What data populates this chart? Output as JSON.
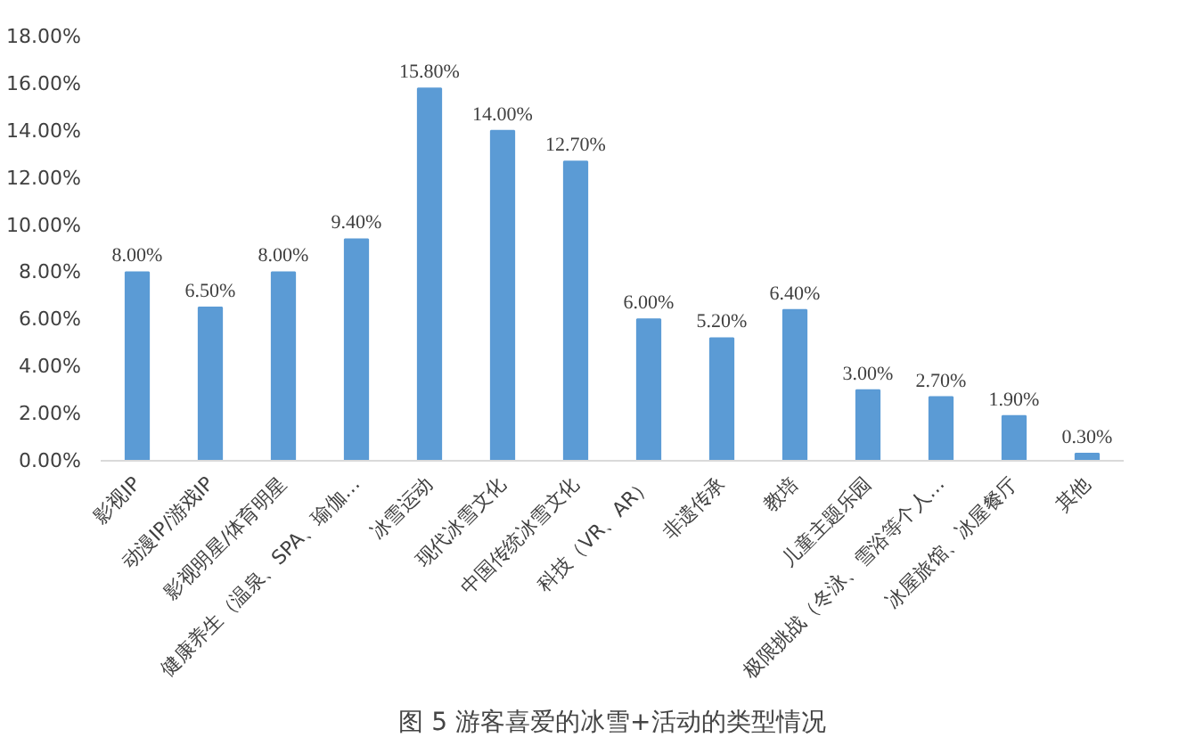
{
  "chart_data": {
    "type": "bar",
    "categories": [
      "影视IP",
      "动漫IP/游戏IP",
      "影视明星/体育明星",
      "健康养生（温泉、SPA、瑜伽…",
      "冰雪运动",
      "现代冰雪文化",
      "中国传统冰雪文化",
      "科技（VR、AR）",
      "非遗传承",
      "教培",
      "儿童主题乐园",
      "极限挑战（冬泳、雪浴等个人…",
      "冰屋旅馆、冰屋餐厅",
      "其他"
    ],
    "values": [
      8.0,
      6.5,
      8.0,
      9.4,
      15.8,
      14.0,
      12.7,
      6.0,
      5.2,
      6.4,
      3.0,
      2.7,
      1.9,
      0.3
    ],
    "value_labels": [
      "8.00%",
      "6.50%",
      "8.00%",
      "9.40%",
      "15.80%",
      "14.00%",
      "12.70%",
      "6.00%",
      "5.20%",
      "6.40%",
      "3.00%",
      "2.70%",
      "1.90%",
      "0.30%"
    ],
    "color": "#5b9bd5",
    "ylim": [
      0,
      18
    ],
    "yticks": [
      {
        "value": 0,
        "label": "0.00%"
      },
      {
        "value": 2,
        "label": "2.00%"
      },
      {
        "value": 4,
        "label": "4.00%"
      },
      {
        "value": 6,
        "label": "6.00%"
      },
      {
        "value": 8,
        "label": "8.00%"
      },
      {
        "value": 10,
        "label": "10.00%"
      },
      {
        "value": 12,
        "label": "12.00%"
      },
      {
        "value": 14,
        "label": "14.00%"
      },
      {
        "value": 16,
        "label": "16.00%"
      },
      {
        "value": 18,
        "label": "18.00%"
      }
    ],
    "annotations": [
      "图 5 游客喜爱的冰雪+活动的类型情况"
    ]
  }
}
